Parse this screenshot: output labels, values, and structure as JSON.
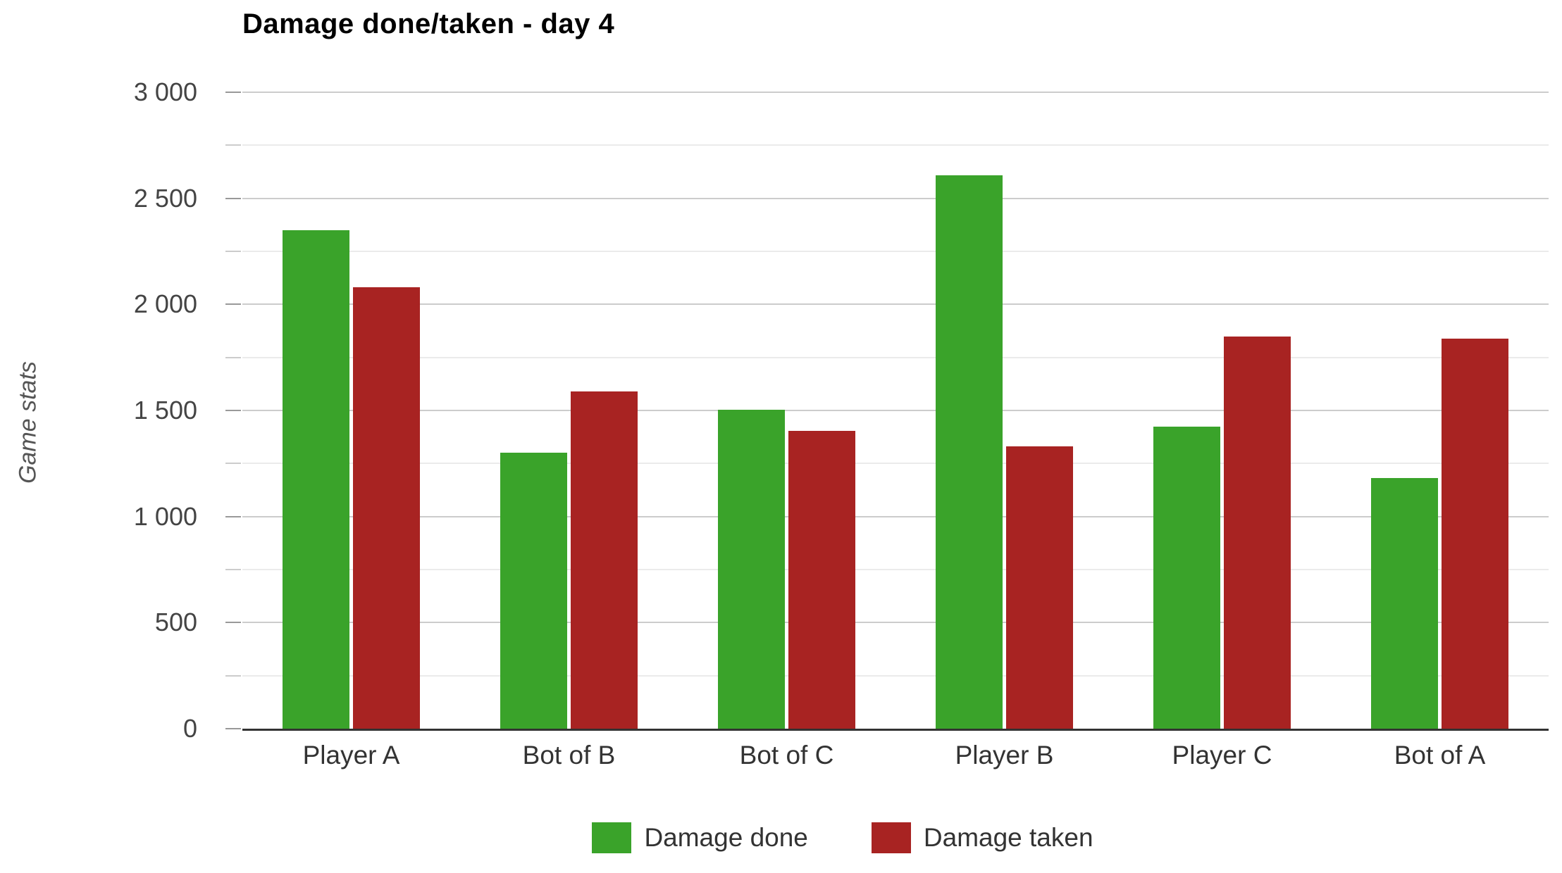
{
  "chart_data": {
    "type": "bar",
    "title": "Damage done/taken - day 4",
    "ylabel": "Game stats",
    "categories": [
      "Player A",
      "Bot of B",
      "Bot of C",
      "Player B",
      "Player C",
      "Bot of A"
    ],
    "series": [
      {
        "name": "Damage done",
        "color": "#3aa32a",
        "values": [
          2350,
          1300,
          1505,
          2610,
          1425,
          1180
        ]
      },
      {
        "name": "Damage taken",
        "color": "#a82322",
        "values": [
          2080,
          1590,
          1405,
          1330,
          1850,
          1840
        ]
      }
    ],
    "ylim": [
      0,
      3000
    ],
    "ytick_step": 500,
    "yminor_step": 250,
    "ytick_labels": [
      "0",
      "500",
      "1 000",
      "1 500",
      "2 000",
      "2 500",
      "3 000"
    ],
    "grid": true,
    "legend_position": "bottom",
    "colors": {
      "background": "#ffffff",
      "major_gridline": "#cccccc",
      "minor_gridline": "#ebebeb",
      "baseline": "#333333",
      "tick_label": "#444444",
      "category_label": "#333333",
      "title": "#000000",
      "axis_title": "#555555",
      "legend_label": "#333333"
    }
  }
}
